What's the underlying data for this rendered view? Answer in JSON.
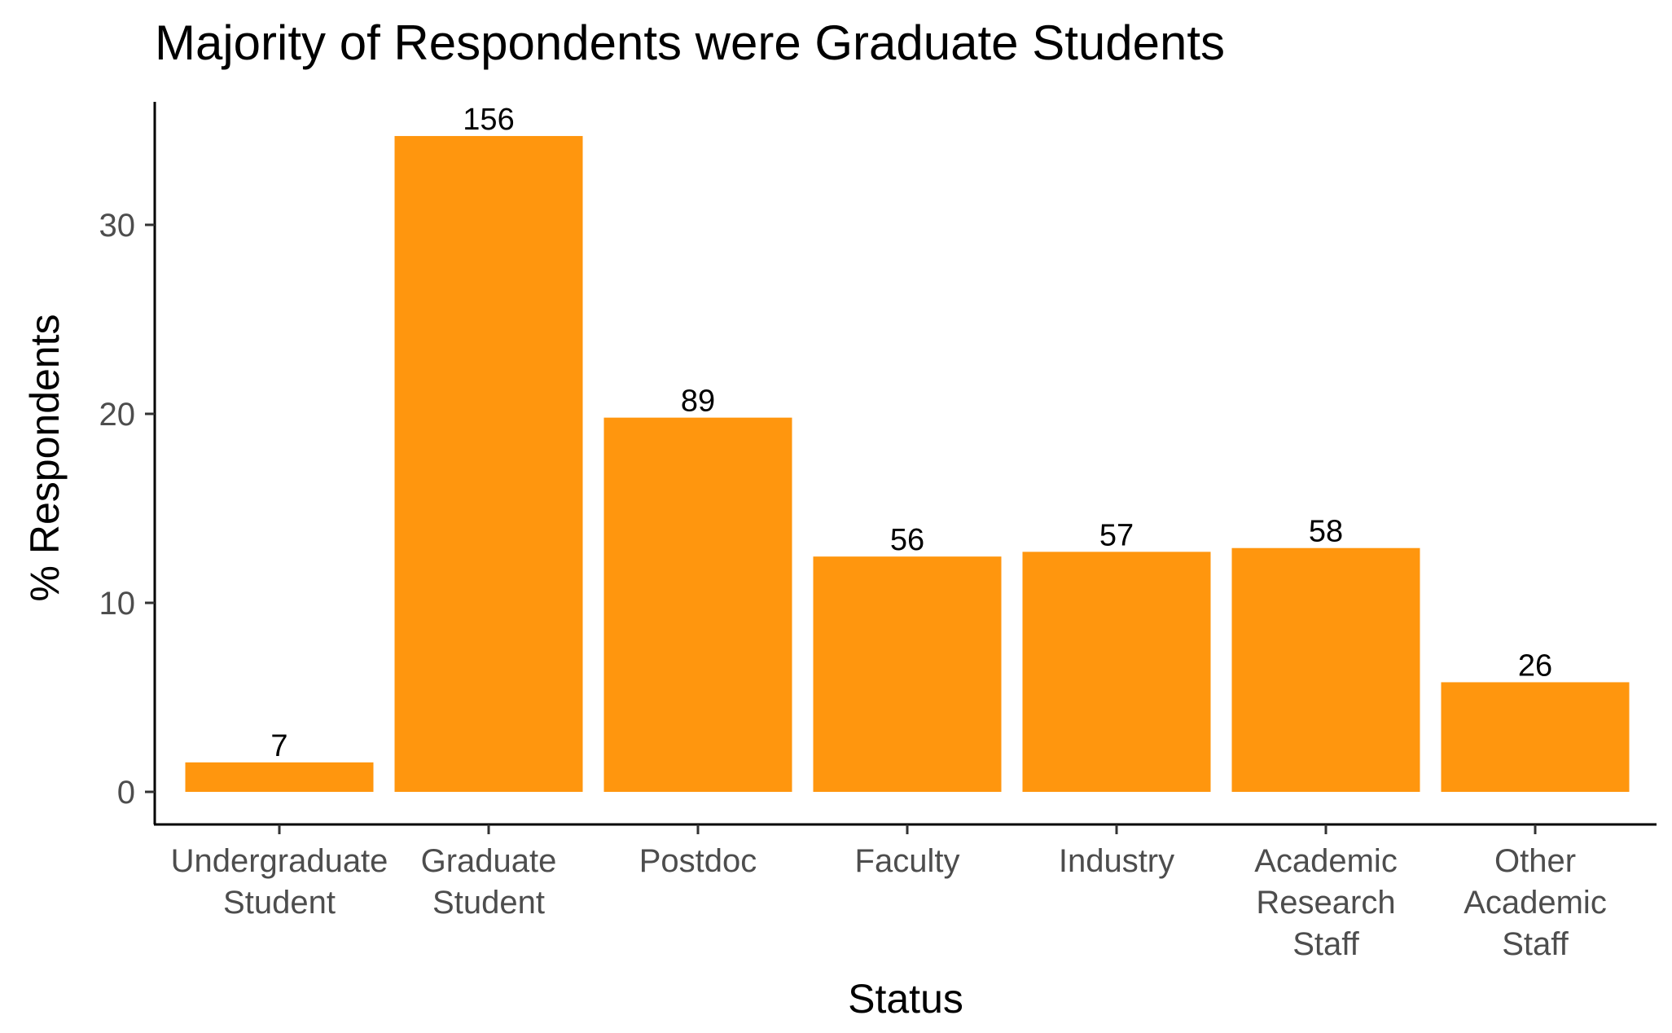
{
  "chart_data": {
    "type": "bar",
    "title": "Majority of Respondents were Graduate Students",
    "xlabel": "Status",
    "ylabel": "% Respondents",
    "categories": [
      [
        "Undergraduate",
        "Student"
      ],
      [
        "Graduate",
        "Student"
      ],
      [
        "Postdoc"
      ],
      [
        "Faculty"
      ],
      [
        "Industry"
      ],
      [
        "Academic",
        "Research",
        "Staff"
      ],
      [
        "Other",
        "Academic",
        "Staff"
      ]
    ],
    "values": [
      1.56,
      34.7,
      19.8,
      12.45,
      12.7,
      12.9,
      5.8
    ],
    "data_labels": [
      "7",
      "156",
      "89",
      "56",
      "57",
      "58",
      "26"
    ],
    "yticks": [
      "0",
      "10",
      "20",
      "30"
    ],
    "ylim": [
      0,
      35
    ],
    "grid": false,
    "colors": {
      "bar": "#FF960E",
      "axis": "#000000",
      "tick_text": "#4d4d4d"
    }
  }
}
